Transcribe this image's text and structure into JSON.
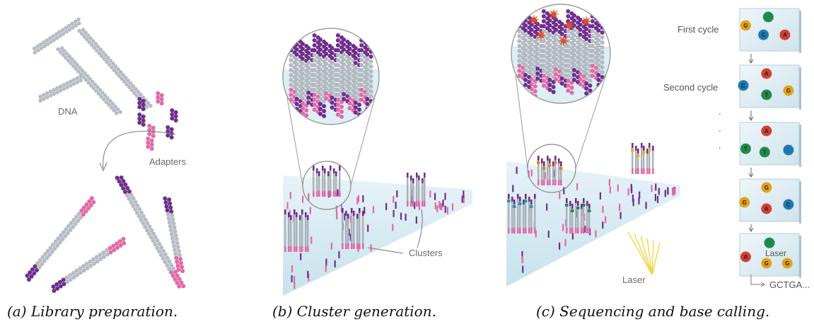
{
  "panel_a": {
    "caption": "(a) Library preparation.",
    "dna_label": "DNA",
    "adapters_label": "Adapters"
  },
  "panel_b": {
    "caption": "(b) Cluster generation.",
    "clusters_label": "Clusters"
  },
  "panel_c": {
    "caption": "(c) Sequencing and base calling.",
    "laser_label": "Laser",
    "first_cycle": "First cycle",
    "second_cycle": "Second cycle",
    "ellipsis_dots": [
      ".",
      ".",
      "."
    ],
    "cycle_boxes": [
      [
        {
          "b": "G",
          "c": "#e3a21a"
        },
        {
          "b": "",
          "c": "#1f8a4c"
        },
        {
          "b": "C",
          "c": "#1f78b4"
        },
        {
          "b": "A",
          "c": "#d2402f"
        }
      ],
      [
        {
          "b": "C",
          "c": "#1f78b4"
        },
        {
          "b": "A",
          "c": "#d2402f"
        },
        {
          "b": "T",
          "c": "#1f8a4c"
        },
        {
          "b": "G",
          "c": "#e3a21a"
        }
      ],
      [
        {
          "b": "A",
          "c": "#d2402f"
        },
        {
          "b": "T",
          "c": "#1f8a4c"
        },
        {
          "b": "T",
          "c": "#1f8a4c"
        },
        {
          "b": "",
          "c": "#1f78b4"
        }
      ],
      [
        {
          "b": "G",
          "c": "#e3a21a"
        },
        {
          "b": "G",
          "c": "#e3a21a"
        },
        {
          "b": "A",
          "c": "#d2402f"
        },
        {
          "b": "C",
          "c": "#1f78b4"
        }
      ],
      [
        {
          "b": "A",
          "c": "#d2402f"
        },
        {
          "b": "",
          "c": "#1f8a4c"
        },
        {
          "b": "G",
          "c": "#e3a21a"
        },
        {
          "b": "G",
          "c": "#e3a21a"
        }
      ]
    ],
    "box_laser_label": "Laser",
    "read_output": "GCTGA..."
  },
  "colors": {
    "dna_strand": "#b7bcc4",
    "adapter_purple": "#6e2f8c",
    "adapter_pink": "#e06aa6",
    "slide": "#cfe6ef",
    "laser": "#f2d23a",
    "box_bg": "#dbeaf1"
  }
}
